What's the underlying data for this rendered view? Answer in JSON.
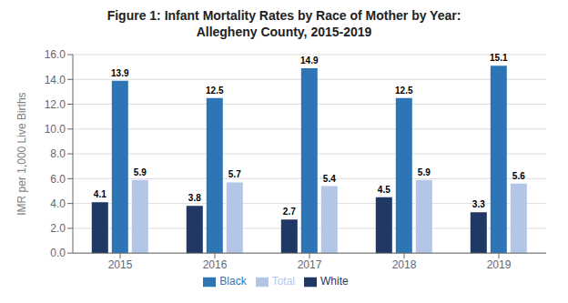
{
  "chart_data": {
    "type": "bar",
    "title": "Figure 1: Infant Mortality Rates by Race of Mother by Year:\nAllegheny County, 2015-2019",
    "ylabel": "IMR per 1,000 Live Births",
    "categories": [
      "2015",
      "2016",
      "2017",
      "2018",
      "2019"
    ],
    "series": [
      {
        "name": "White",
        "color": "#1F3864",
        "values": [
          4.1,
          3.8,
          2.7,
          4.5,
          3.3
        ]
      },
      {
        "name": "Black",
        "color": "#2E75B6",
        "values": [
          13.9,
          12.5,
          14.9,
          12.5,
          15.1
        ]
      },
      {
        "name": "Total",
        "color": "#B4C6E7",
        "values": [
          5.9,
          5.7,
          5.4,
          5.9,
          5.6
        ]
      }
    ],
    "ylim": [
      0,
      16.0
    ],
    "yticks": [
      {
        "value": 0,
        "label": "0.0"
      },
      {
        "value": 2,
        "label": "2.0"
      },
      {
        "value": 4,
        "label": "4.0"
      },
      {
        "value": 6,
        "label": "6.0"
      },
      {
        "value": 8,
        "label": "8.0"
      },
      {
        "value": 10,
        "label": "10.0"
      },
      {
        "value": 12,
        "label": "12.0"
      },
      {
        "value": 14,
        "label": "14.0"
      },
      {
        "value": 16,
        "label": "16.0"
      }
    ],
    "grid": true,
    "legend": "bottom",
    "data_labels": true
  }
}
